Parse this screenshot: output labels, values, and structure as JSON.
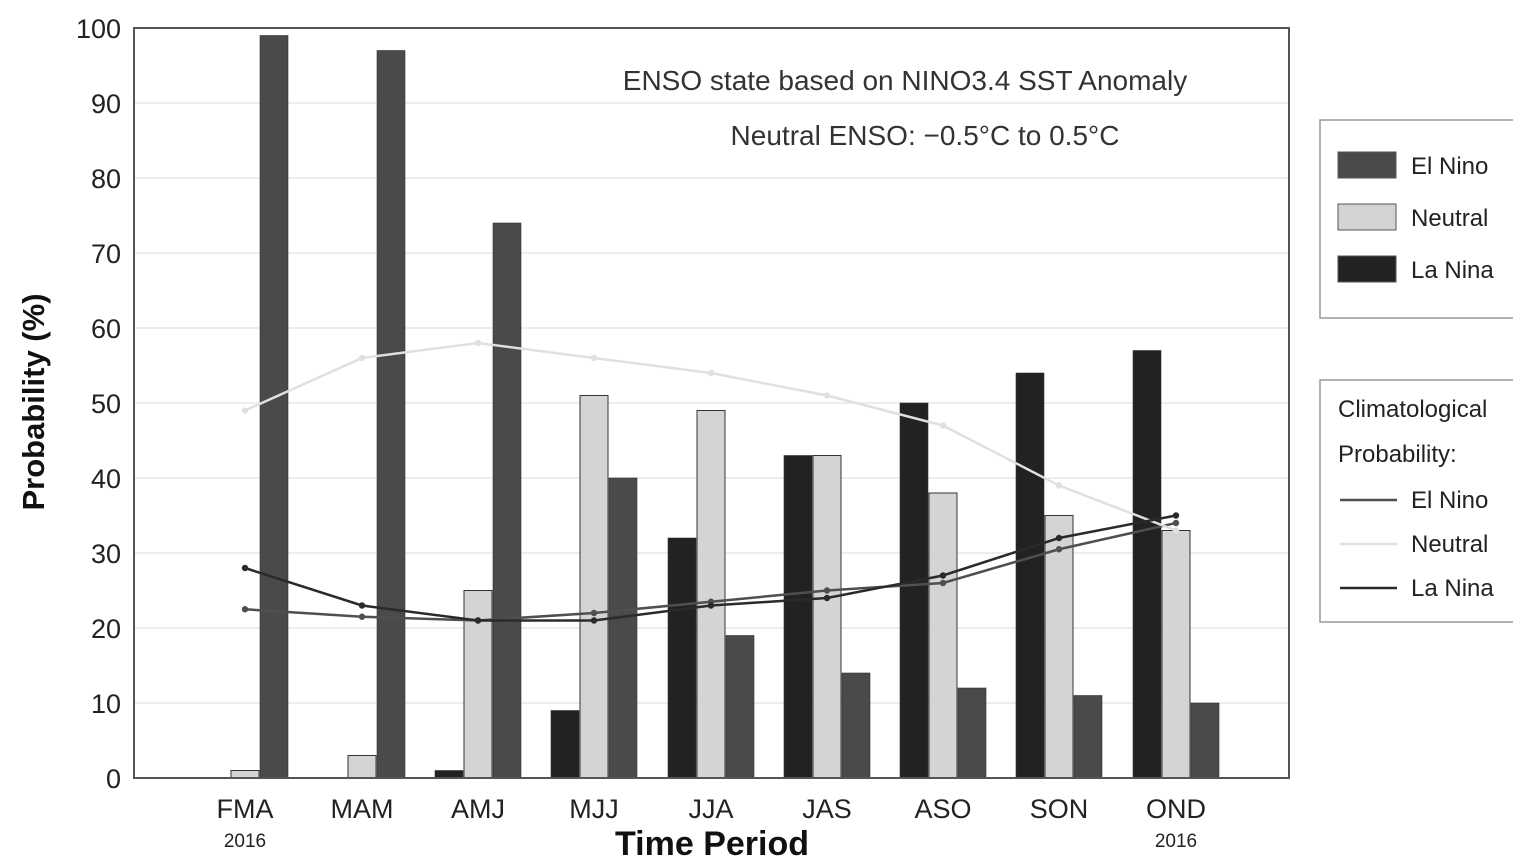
{
  "chart_data": {
    "type": "bar",
    "categories": [
      "FMA",
      "MAM",
      "AMJ",
      "MJJ",
      "JJA",
      "JAS",
      "ASO",
      "SON",
      "OND"
    ],
    "category_sublabels": [
      "2016",
      "",
      "",
      "",
      "",
      "",
      "",
      "",
      "2016"
    ],
    "series": [
      {
        "name": "La Nina",
        "color": "#222222",
        "values": [
          0,
          0,
          1,
          9,
          32,
          43,
          50,
          54,
          57
        ]
      },
      {
        "name": "Neutral",
        "color": "#d4d4d4",
        "values": [
          1,
          3,
          25,
          51,
          49,
          43,
          38,
          35,
          33
        ]
      },
      {
        "name": "El Nino",
        "color": "#4a4a4a",
        "values": [
          99,
          97,
          74,
          40,
          19,
          14,
          12,
          11,
          10
        ]
      }
    ],
    "climatology": [
      {
        "name": "El Nino",
        "color": "#4f4f4f",
        "values": [
          22.5,
          21.5,
          21,
          22,
          23.5,
          25,
          26,
          30.5,
          34
        ]
      },
      {
        "name": "Neutral",
        "color": "#e0e0e0",
        "values": [
          49,
          56,
          58,
          56,
          54,
          51,
          47,
          39,
          33
        ]
      },
      {
        "name": "La Nina",
        "color": "#2a2a2a",
        "values": [
          28,
          23,
          21,
          21,
          23,
          24,
          27,
          32,
          35
        ]
      }
    ],
    "annotation_line1": "ENSO state based on NINO3.4 SST Anomaly",
    "annotation_line2": "Neutral ENSO: −0.5°C to 0.5°C",
    "xlabel": "Time Period",
    "ylabel": "Probability (%)",
    "ylim": [
      0,
      100
    ],
    "yticks": [
      0,
      10,
      20,
      30,
      40,
      50,
      60,
      70,
      80,
      90,
      100
    ],
    "grid": true,
    "legend_placement": "right",
    "legend_bars": [
      "El Nino",
      "Neutral",
      "La Nina"
    ],
    "legend_lines_title_1": "Climatological",
    "legend_lines_title_2": "Probability:",
    "legend_lines": [
      "El Nino",
      "Neutral",
      "La Nina"
    ]
  }
}
